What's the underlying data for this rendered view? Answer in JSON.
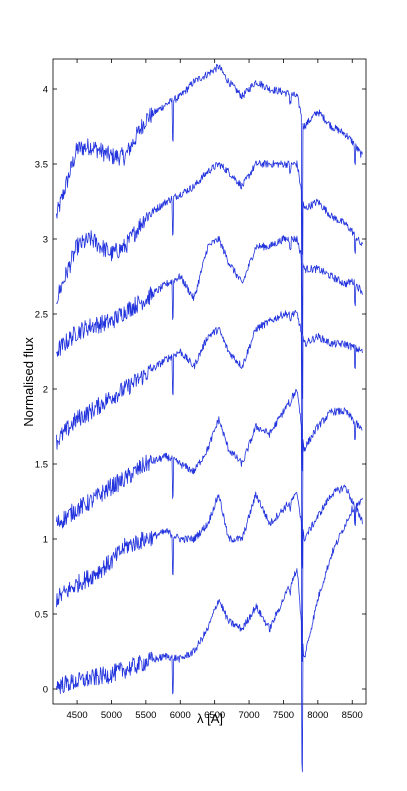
{
  "chart_data": {
    "type": "line",
    "title": "",
    "xlabel": "λ [A]",
    "ylabel": "Normalised flux",
    "xlim": [
      4150,
      8700
    ],
    "ylim": [
      -0.1,
      4.2
    ],
    "x_ticks": [
      4500,
      5000,
      5500,
      6000,
      6500,
      7000,
      7500,
      8000,
      8500
    ],
    "y_ticks": [
      0,
      0.5,
      1,
      1.5,
      2,
      2.5,
      3,
      3.5,
      4
    ],
    "y_tick_labels": [
      "0",
      "0.5",
      "1",
      "1.5",
      "2",
      "2.5",
      "3",
      "3.5",
      "4"
    ],
    "grid": false,
    "line_color": "#2233dd",
    "series": [
      {
        "x": [
          4200,
          4500,
          4700,
          5000,
          5200,
          5500,
          5800,
          6000,
          6200,
          6400,
          6560,
          6700,
          6900,
          7100,
          7300,
          7500,
          7700,
          7800,
          8000,
          8200,
          8400,
          8500,
          8650
        ],
        "values": [
          3.15,
          3.6,
          3.62,
          3.55,
          3.55,
          3.8,
          3.9,
          3.95,
          4.05,
          4.1,
          4.15,
          4.05,
          3.95,
          4.05,
          4.0,
          3.98,
          3.95,
          3.75,
          3.85,
          3.75,
          3.7,
          3.65,
          3.55
        ]
      },
      {
        "x": [
          4200,
          4500,
          4700,
          5000,
          5200,
          5500,
          5800,
          6000,
          6200,
          6400,
          6560,
          6700,
          6900,
          7100,
          7300,
          7500,
          7700,
          7800,
          8000,
          8200,
          8400,
          8500,
          8650
        ],
        "values": [
          2.6,
          2.95,
          3.0,
          2.9,
          2.95,
          3.15,
          3.25,
          3.3,
          3.35,
          3.45,
          3.5,
          3.45,
          3.35,
          3.5,
          3.5,
          3.5,
          3.5,
          3.2,
          3.25,
          3.15,
          3.1,
          3.05,
          2.95
        ]
      },
      {
        "x": [
          4200,
          4500,
          4700,
          5000,
          5200,
          5500,
          5800,
          6000,
          6200,
          6400,
          6560,
          6700,
          6900,
          7100,
          7300,
          7500,
          7700,
          7800,
          8000,
          8200,
          8400,
          8500,
          8650
        ],
        "values": [
          2.25,
          2.38,
          2.42,
          2.45,
          2.52,
          2.6,
          2.7,
          2.75,
          2.6,
          2.95,
          3.0,
          2.85,
          2.7,
          2.95,
          2.95,
          3.0,
          3.0,
          2.8,
          2.8,
          2.75,
          2.7,
          2.72,
          2.65
        ]
      },
      {
        "x": [
          4200,
          4500,
          4700,
          5000,
          5200,
          5500,
          5800,
          6000,
          6200,
          6400,
          6560,
          6700,
          6900,
          7100,
          7300,
          7500,
          7700,
          7800,
          8000,
          8200,
          8400,
          8500,
          8650
        ],
        "values": [
          1.65,
          1.8,
          1.85,
          1.95,
          2.0,
          2.1,
          2.2,
          2.25,
          2.15,
          2.35,
          2.4,
          2.25,
          2.15,
          2.4,
          2.45,
          2.5,
          2.5,
          2.3,
          2.35,
          2.3,
          2.3,
          2.28,
          2.25
        ]
      },
      {
        "x": [
          4200,
          4500,
          4700,
          5000,
          5200,
          5500,
          5800,
          6000,
          6200,
          6400,
          6560,
          6700,
          6900,
          7100,
          7300,
          7500,
          7700,
          7800,
          8000,
          8200,
          8400,
          8500,
          8650
        ],
        "values": [
          1.1,
          1.2,
          1.25,
          1.35,
          1.4,
          1.5,
          1.55,
          1.5,
          1.45,
          1.6,
          1.8,
          1.6,
          1.5,
          1.75,
          1.7,
          1.85,
          2.0,
          1.6,
          1.75,
          1.85,
          1.85,
          1.8,
          1.72
        ]
      },
      {
        "x": [
          4200,
          4500,
          4700,
          5000,
          5200,
          5500,
          5800,
          6000,
          6200,
          6400,
          6560,
          6700,
          6900,
          7100,
          7300,
          7500,
          7700,
          7800,
          8000,
          8200,
          8400,
          8500,
          8650
        ],
        "values": [
          0.6,
          0.7,
          0.75,
          0.85,
          0.95,
          1.0,
          1.05,
          1.0,
          1.0,
          1.1,
          1.3,
          1.0,
          1.0,
          1.3,
          1.1,
          1.2,
          1.3,
          1.0,
          1.15,
          1.3,
          1.35,
          1.25,
          1.12
        ]
      },
      {
        "x": [
          4200,
          4500,
          4700,
          5000,
          5200,
          5500,
          5800,
          6000,
          6200,
          6400,
          6560,
          6700,
          6900,
          7100,
          7300,
          7500,
          7700,
          7800,
          8000,
          8200,
          8400,
          8500,
          8650
        ],
        "values": [
          0.02,
          0.05,
          0.07,
          0.1,
          0.13,
          0.18,
          0.22,
          0.2,
          0.25,
          0.4,
          0.6,
          0.45,
          0.4,
          0.55,
          0.4,
          0.6,
          0.8,
          0.2,
          0.6,
          0.9,
          1.1,
          1.2,
          1.25
        ]
      }
    ]
  }
}
